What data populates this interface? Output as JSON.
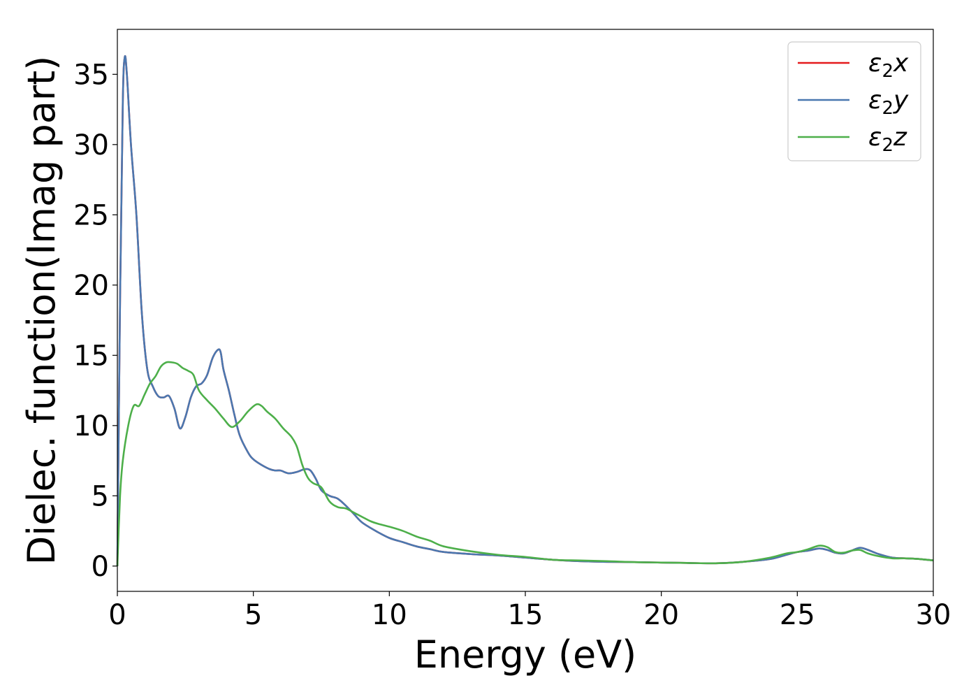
{
  "chart_data": {
    "type": "line",
    "xlabel": "Energy (eV)",
    "ylabel": "Dielec. function(Imag part)",
    "xlim": [
      0,
      30
    ],
    "ylim": [
      -1.8,
      38.2
    ],
    "xticks": [
      0,
      5,
      10,
      15,
      20,
      25,
      30
    ],
    "yticks": [
      0,
      5,
      10,
      15,
      20,
      25,
      30,
      35
    ],
    "grid": false,
    "legend_position": "top-right",
    "series": [
      {
        "name": "ε2x",
        "legend_base": "ε",
        "legend_sub": "2",
        "legend_var": "x",
        "color": "#e41a1c",
        "x": [
          0,
          0.1,
          0.2,
          0.27,
          0.35,
          0.5,
          0.7,
          0.9,
          1.1,
          1.3,
          1.5,
          1.7,
          1.9,
          2.1,
          2.3,
          2.5,
          2.7,
          2.9,
          3.1,
          3.3,
          3.5,
          3.7,
          3.8,
          3.9,
          4.1,
          4.3,
          4.5,
          4.8,
          5.0,
          5.3,
          5.6,
          5.8,
          6.0,
          6.3,
          6.6,
          6.9,
          7.1,
          7.3,
          7.5,
          7.8,
          8.1,
          8.4,
          8.7,
          9.0,
          9.5,
          10.0,
          10.5,
          11.0,
          11.5,
          12.0,
          13.0,
          14.0,
          15.0,
          16.0,
          17.0,
          18.0,
          19.0,
          20.0,
          21.0,
          22.0,
          23.0,
          24.0,
          24.6,
          25.0,
          25.4,
          25.8,
          26.1,
          26.4,
          26.7,
          27.0,
          27.3,
          27.6,
          28.0,
          28.5,
          29.0,
          29.5,
          30.0
        ],
        "y": [
          0,
          19,
          33,
          36.2,
          35,
          30,
          25,
          18,
          14,
          12.8,
          12.1,
          12.0,
          12.1,
          11.2,
          9.8,
          10.6,
          12,
          12.8,
          13,
          13.6,
          14.8,
          15.4,
          15.2,
          14,
          12.5,
          10.8,
          9.3,
          8.1,
          7.6,
          7.2,
          6.9,
          6.8,
          6.8,
          6.6,
          6.7,
          6.9,
          6.8,
          6.2,
          5.4,
          5.0,
          4.8,
          4.3,
          3.7,
          3.1,
          2.5,
          2.0,
          1.7,
          1.4,
          1.2,
          1.0,
          0.85,
          0.75,
          0.6,
          0.45,
          0.35,
          0.3,
          0.28,
          0.25,
          0.22,
          0.2,
          0.3,
          0.5,
          0.8,
          1.0,
          1.1,
          1.25,
          1.15,
          0.95,
          0.9,
          1.1,
          1.3,
          1.15,
          0.85,
          0.6,
          0.55,
          0.5,
          0.4
        ]
      },
      {
        "name": "ε2y",
        "legend_base": "ε",
        "legend_sub": "2",
        "legend_var": "y",
        "color": "#4a78b0",
        "x": [
          0,
          0.1,
          0.2,
          0.27,
          0.35,
          0.5,
          0.7,
          0.9,
          1.1,
          1.3,
          1.5,
          1.7,
          1.9,
          2.1,
          2.3,
          2.5,
          2.7,
          2.9,
          3.1,
          3.3,
          3.5,
          3.7,
          3.8,
          3.9,
          4.1,
          4.3,
          4.5,
          4.8,
          5.0,
          5.3,
          5.6,
          5.8,
          6.0,
          6.3,
          6.6,
          6.9,
          7.1,
          7.3,
          7.5,
          7.8,
          8.1,
          8.4,
          8.7,
          9.0,
          9.5,
          10.0,
          10.5,
          11.0,
          11.5,
          12.0,
          13.0,
          14.0,
          15.0,
          16.0,
          17.0,
          18.0,
          19.0,
          20.0,
          21.0,
          22.0,
          23.0,
          24.0,
          24.6,
          25.0,
          25.4,
          25.8,
          26.1,
          26.4,
          26.7,
          27.0,
          27.3,
          27.6,
          28.0,
          28.5,
          29.0,
          29.5,
          30.0
        ],
        "y": [
          0,
          19,
          33,
          36.2,
          35,
          30,
          25,
          18,
          14,
          12.8,
          12.1,
          12.0,
          12.1,
          11.2,
          9.8,
          10.6,
          12,
          12.8,
          13,
          13.6,
          14.8,
          15.4,
          15.2,
          14,
          12.5,
          10.8,
          9.3,
          8.1,
          7.6,
          7.2,
          6.9,
          6.8,
          6.8,
          6.6,
          6.7,
          6.9,
          6.8,
          6.2,
          5.4,
          5.0,
          4.8,
          4.3,
          3.7,
          3.1,
          2.5,
          2.0,
          1.7,
          1.4,
          1.2,
          1.0,
          0.85,
          0.75,
          0.6,
          0.45,
          0.35,
          0.3,
          0.28,
          0.25,
          0.22,
          0.2,
          0.3,
          0.5,
          0.8,
          1.0,
          1.1,
          1.25,
          1.15,
          0.95,
          0.9,
          1.1,
          1.3,
          1.15,
          0.85,
          0.6,
          0.55,
          0.5,
          0.4
        ]
      },
      {
        "name": "ε2z",
        "legend_base": "ε",
        "legend_sub": "2",
        "legend_var": "z",
        "color": "#4daf4a",
        "x": [
          0,
          0.1,
          0.2,
          0.4,
          0.6,
          0.8,
          1.0,
          1.2,
          1.4,
          1.6,
          1.8,
          2.0,
          2.2,
          2.4,
          2.6,
          2.8,
          3.0,
          3.3,
          3.6,
          3.9,
          4.2,
          4.5,
          4.8,
          5.1,
          5.3,
          5.5,
          5.8,
          6.1,
          6.4,
          6.6,
          6.8,
          7.0,
          7.2,
          7.5,
          7.8,
          8.1,
          8.4,
          8.7,
          9.0,
          9.3,
          9.6,
          10.0,
          10.5,
          11.0,
          11.5,
          12.0,
          13.0,
          14.0,
          15.0,
          16.0,
          17.0,
          18.0,
          19.0,
          20.0,
          21.0,
          22.0,
          23.0,
          24.0,
          24.6,
          25.0,
          25.4,
          25.8,
          26.1,
          26.4,
          26.7,
          27.0,
          27.3,
          27.6,
          28.0,
          28.5,
          29.0,
          29.5,
          30.0
        ],
        "y": [
          0,
          5,
          7.5,
          10,
          11.4,
          11.4,
          12.2,
          13,
          13.5,
          14.2,
          14.5,
          14.5,
          14.4,
          14.1,
          13.9,
          13.6,
          12.5,
          11.8,
          11.2,
          10.5,
          9.9,
          10.3,
          11.0,
          11.5,
          11.4,
          11.0,
          10.5,
          9.8,
          9.2,
          8.5,
          7.2,
          6.3,
          5.9,
          5.6,
          4.6,
          4.2,
          4.1,
          3.8,
          3.5,
          3.2,
          3.0,
          2.8,
          2.5,
          2.1,
          1.8,
          1.4,
          1.05,
          0.8,
          0.65,
          0.45,
          0.4,
          0.35,
          0.28,
          0.25,
          0.22,
          0.2,
          0.3,
          0.6,
          0.9,
          1.0,
          1.2,
          1.45,
          1.35,
          1.0,
          0.95,
          1.1,
          1.15,
          0.9,
          0.7,
          0.55,
          0.55,
          0.5,
          0.4
        ]
      }
    ]
  }
}
